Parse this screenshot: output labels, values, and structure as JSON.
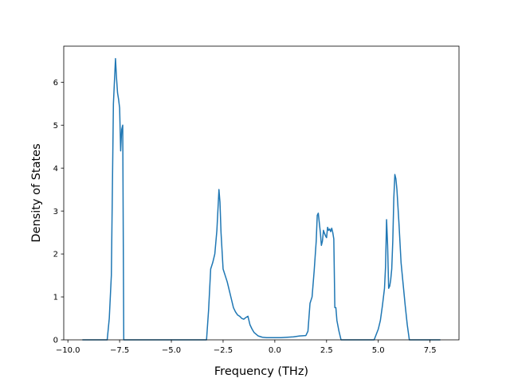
{
  "chart_data": {
    "type": "line",
    "title": "",
    "xlabel": "Frequency (THz)",
    "ylabel": "Density of States",
    "xlim": [
      -10.2,
      8.9
    ],
    "ylim": [
      0,
      6.84
    ],
    "grid": false,
    "legend": "none",
    "xticks": [
      -10.0,
      -7.5,
      -5.0,
      -2.5,
      0.0,
      2.5,
      5.0,
      7.5
    ],
    "xtick_labels": [
      "−10.0",
      "−7.5",
      "−5.0",
      "−2.5",
      "0.0",
      "2.5",
      "5.0",
      "7.5"
    ],
    "yticks": [
      0,
      1,
      2,
      3,
      4,
      5,
      6
    ],
    "ytick_labels": [
      "0",
      "1",
      "2",
      "3",
      "4",
      "5",
      "6"
    ],
    "series": [
      {
        "color": "#1f77b4",
        "x": [
          -9.3,
          -8.5,
          -8.1,
          -8.0,
          -7.9,
          -7.8,
          -7.7,
          -7.65,
          -7.6,
          -7.55,
          -7.5,
          -7.45,
          -7.4,
          -7.35,
          -7.3,
          -7.25,
          -7.2,
          -7.1,
          -6.0,
          -4.0,
          -3.3,
          -3.2,
          -3.1,
          -3.0,
          -2.9,
          -2.8,
          -2.7,
          -2.65,
          -2.6,
          -2.5,
          -2.4,
          -2.3,
          -2.2,
          -2.1,
          -2.0,
          -1.9,
          -1.8,
          -1.7,
          -1.6,
          -1.5,
          -1.4,
          -1.3,
          -1.2,
          -1.1,
          -1.0,
          -0.8,
          -0.6,
          -0.4,
          -0.2,
          0.0,
          0.3,
          0.6,
          0.9,
          1.2,
          1.5,
          1.6,
          1.7,
          1.8,
          1.9,
          2.0,
          2.05,
          2.1,
          2.2,
          2.25,
          2.3,
          2.35,
          2.4,
          2.45,
          2.5,
          2.55,
          2.6,
          2.65,
          2.7,
          2.75,
          2.8,
          2.85,
          2.9,
          2.95,
          3.0,
          3.1,
          3.2,
          3.3,
          4.0,
          4.8,
          5.0,
          5.1,
          5.2,
          5.3,
          5.35,
          5.4,
          5.45,
          5.5,
          5.55,
          5.6,
          5.65,
          5.7,
          5.75,
          5.8,
          5.85,
          5.9,
          6.0,
          6.1,
          6.2,
          6.3,
          6.4,
          6.5,
          6.6,
          6.7,
          7.0,
          7.5,
          8.0
        ],
        "y": [
          0.0,
          0.0,
          0.0,
          0.5,
          1.5,
          5.5,
          6.55,
          6.1,
          5.75,
          5.6,
          5.4,
          4.4,
          4.9,
          5.0,
          0.0,
          0.0,
          0.0,
          0.0,
          0.0,
          0.0,
          0.0,
          0.7,
          1.65,
          1.8,
          2.0,
          2.55,
          3.5,
          3.2,
          2.5,
          1.65,
          1.5,
          1.35,
          1.15,
          0.95,
          0.75,
          0.65,
          0.58,
          0.55,
          0.5,
          0.48,
          0.52,
          0.55,
          0.35,
          0.25,
          0.17,
          0.09,
          0.06,
          0.05,
          0.05,
          0.05,
          0.05,
          0.06,
          0.07,
          0.09,
          0.1,
          0.2,
          0.85,
          1.0,
          1.6,
          2.3,
          2.9,
          2.95,
          2.5,
          2.2,
          2.3,
          2.55,
          2.48,
          2.42,
          2.38,
          2.62,
          2.55,
          2.58,
          2.52,
          2.6,
          2.5,
          2.35,
          0.75,
          0.75,
          0.45,
          0.2,
          0.0,
          0.0,
          0.0,
          0.0,
          0.25,
          0.45,
          0.8,
          1.2,
          1.7,
          2.8,
          2.2,
          1.2,
          1.25,
          1.4,
          1.65,
          2.3,
          3.3,
          3.85,
          3.75,
          3.5,
          2.7,
          1.8,
          1.3,
          0.8,
          0.35,
          0.0,
          0.0,
          0.0,
          0.0,
          0.0,
          0.0
        ]
      }
    ]
  }
}
